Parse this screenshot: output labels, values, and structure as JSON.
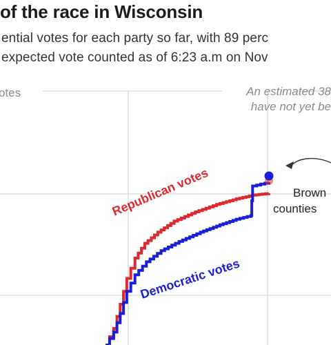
{
  "header": {
    "title": "of the race in Wisconsin",
    "subtitle_line1": "ential votes for each party so far, with 89 perc",
    "subtitle_line2": "expected vote counted as of 6:23 a.m on Nov"
  },
  "annotations": {
    "remaining_line1": "An estimated 38",
    "remaining_line2": "have not yet be",
    "brown_line1": "Brown",
    "brown_line2": "counties"
  },
  "colors": {
    "republican": "#e0282e",
    "democratic": "#1a1fd6",
    "grid": "#d6d6d6",
    "muted": "#8a8a8a"
  },
  "chart_data": {
    "type": "line",
    "title": "of the race in Wisconsin",
    "ylabel": "otes",
    "grid": true,
    "series": [
      {
        "name": "Republican votes",
        "color": "#e0282e",
        "points": [
          [
            0.0,
            0.0
          ],
          [
            0.05,
            0.09
          ],
          [
            0.09,
            0.22
          ],
          [
            0.13,
            0.36
          ],
          [
            0.18,
            0.47
          ],
          [
            0.24,
            0.55
          ],
          [
            0.32,
            0.61
          ],
          [
            0.42,
            0.67
          ],
          [
            0.55,
            0.72
          ],
          [
            0.68,
            0.76
          ],
          [
            0.8,
            0.79
          ],
          [
            0.9,
            0.81
          ],
          [
            1.0,
            0.82
          ]
        ]
      },
      {
        "name": "Democratic votes",
        "color": "#1a1fd6",
        "points": [
          [
            0.0,
            0.0
          ],
          [
            0.05,
            0.07
          ],
          [
            0.09,
            0.17
          ],
          [
            0.13,
            0.29
          ],
          [
            0.18,
            0.38
          ],
          [
            0.25,
            0.45
          ],
          [
            0.34,
            0.51
          ],
          [
            0.45,
            0.56
          ],
          [
            0.58,
            0.61
          ],
          [
            0.7,
            0.65
          ],
          [
            0.8,
            0.68
          ],
          [
            0.89,
            0.7
          ],
          [
            0.9,
            0.86
          ],
          [
            0.95,
            0.87
          ],
          [
            1.0,
            0.88
          ]
        ]
      }
    ],
    "annotations": [
      {
        "text": "Republican votes",
        "color": "#e0282e"
      },
      {
        "text": "Democratic votes",
        "color": "#1a1fd6"
      }
    ]
  }
}
